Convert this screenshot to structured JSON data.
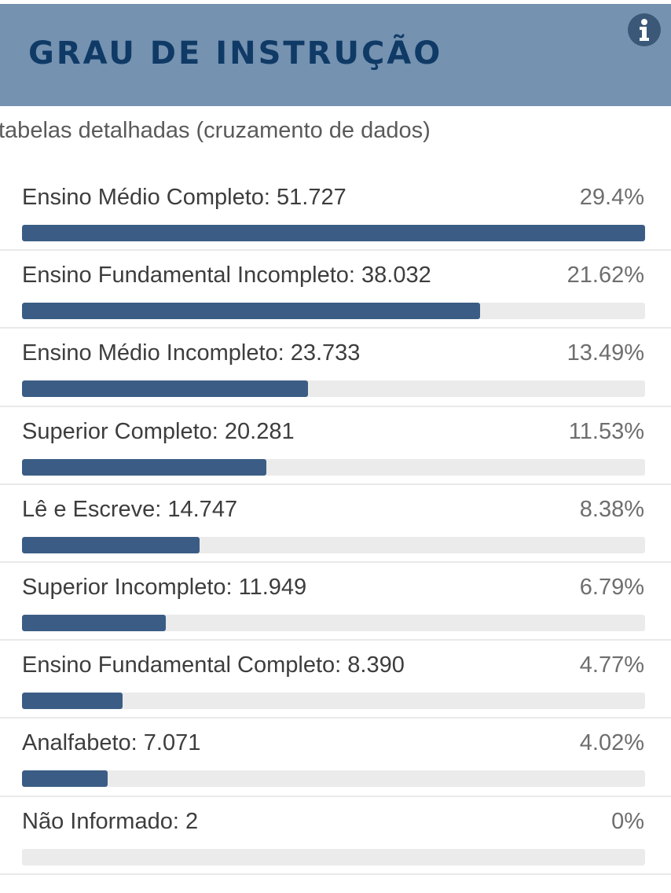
{
  "header": {
    "title": "GRAU DE INSTRUÇÃO",
    "background_color": "#7592b0",
    "title_color": "#0f3a66",
    "info_icon": "info-icon"
  },
  "detail_link": "tabelas detalhadas (cruzamento de dados)",
  "bar_color": "#3b5d85",
  "rows": [
    {
      "label": "Ensino Médio Completo: 51.727",
      "pct": "29.4%",
      "fill": 1.0
    },
    {
      "label": "Ensino Fundamental Incompleto: 38.032",
      "pct": "21.62%",
      "fill": 0.735
    },
    {
      "label": "Ensino Médio Incompleto: 23.733",
      "pct": "13.49%",
      "fill": 0.459
    },
    {
      "label": "Superior Completo: 20.281",
      "pct": "11.53%",
      "fill": 0.392
    },
    {
      "label": "Lê e Escreve: 14.747",
      "pct": "8.38%",
      "fill": 0.285
    },
    {
      "label": "Superior Incompleto: 11.949",
      "pct": "6.79%",
      "fill": 0.231
    },
    {
      "label": "Ensino Fundamental Completo: 8.390",
      "pct": "4.77%",
      "fill": 0.162
    },
    {
      "label": "Analfabeto: 7.071",
      "pct": "4.02%",
      "fill": 0.137
    },
    {
      "label": "Não Informado: 2",
      "pct": "0%",
      "fill": 0.0
    }
  ]
}
